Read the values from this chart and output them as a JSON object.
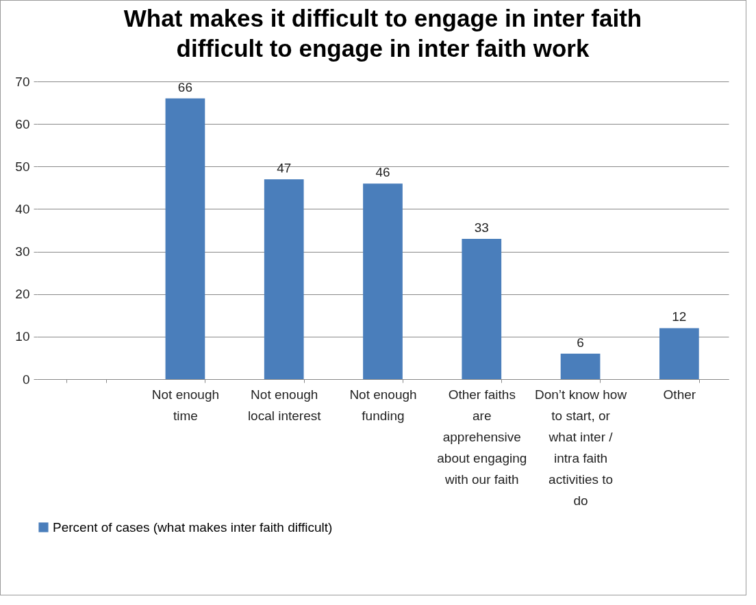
{
  "chart_data": {
    "type": "bar",
    "title": "What makes it difficult to engage in inter faith difficult to engage in inter faith work",
    "categories": [
      null,
      "Not enough time",
      "Not enough local interest",
      "Not enough funding",
      "Other faiths are apprehensive about engaging with our faith",
      "Don’t know how to start, or what inter / intra faith activities to do",
      "Other"
    ],
    "series": [
      {
        "name": "Percent of cases (what makes inter faith difficult)",
        "color": "#4a7ebb",
        "values": [
          null,
          66,
          47,
          46,
          33,
          6,
          12
        ]
      }
    ],
    "ylim": [
      0,
      70
    ],
    "yticks": [
      0,
      10,
      20,
      30,
      40,
      50,
      60,
      70
    ],
    "grid": "y",
    "legend": "bottom",
    "data_labels": true
  }
}
